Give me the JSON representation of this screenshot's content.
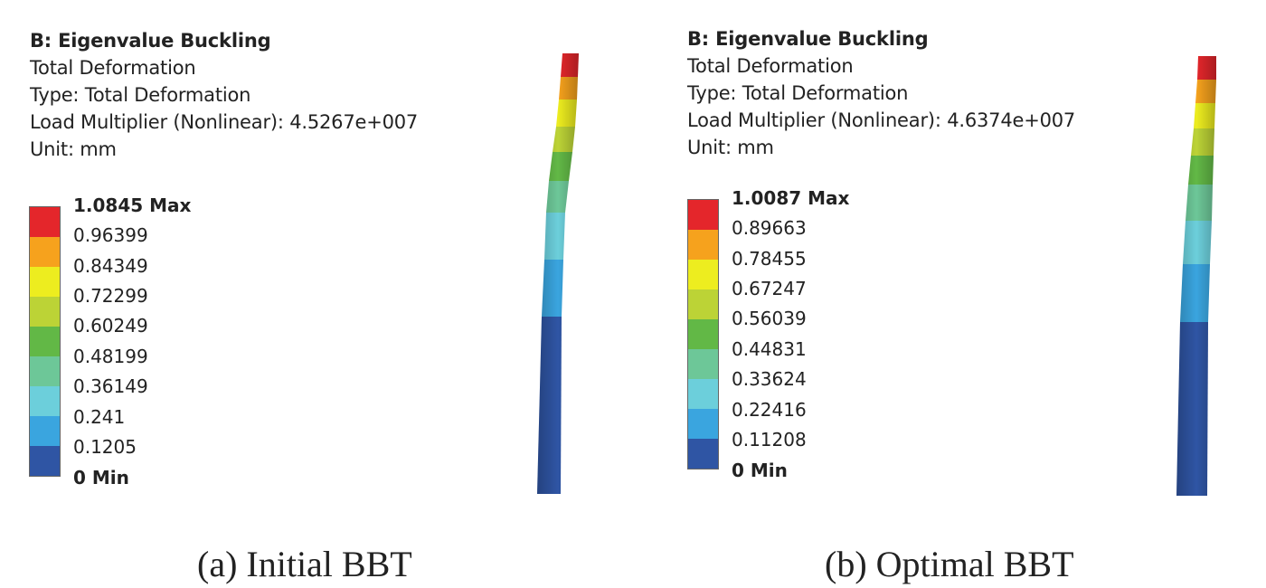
{
  "panels": [
    {
      "id": "a",
      "header": {
        "title": "B: Eigenvalue Buckling",
        "line1": "Total Deformation",
        "line2": "Type: Total Deformation",
        "line3": "Load Multiplier (Nonlinear): 4.5267e+007",
        "line4": "Unit: mm"
      },
      "legend": {
        "labels": [
          "1.0845 Max",
          "0.96399",
          "0.84349",
          "0.72299",
          "0.60249",
          "0.48199",
          "0.36149",
          "0.241",
          "0.1205",
          "0 Min"
        ]
      },
      "caption": "(a) Initial BBT"
    },
    {
      "id": "b",
      "header": {
        "title": "B: Eigenvalue Buckling",
        "line1": "Total Deformation",
        "line2": "Type: Total Deformation",
        "line3": "Load Multiplier (Nonlinear): 4.6374e+007",
        "line4": "Unit: mm"
      },
      "legend": {
        "labels": [
          "1.0087 Max",
          "0.89663",
          "0.78455",
          "0.67247",
          "0.56039",
          "0.44831",
          "0.33624",
          "0.22416",
          "0.11208",
          "0 Min"
        ]
      },
      "caption": "(b) Optimal BBT"
    }
  ],
  "legend_colors": [
    "#e4262b",
    "#f6a21d",
    "#eded1f",
    "#bcd336",
    "#62b846",
    "#6dc798",
    "#6ccfdb",
    "#3aa5df",
    "#2f55a4"
  ]
}
